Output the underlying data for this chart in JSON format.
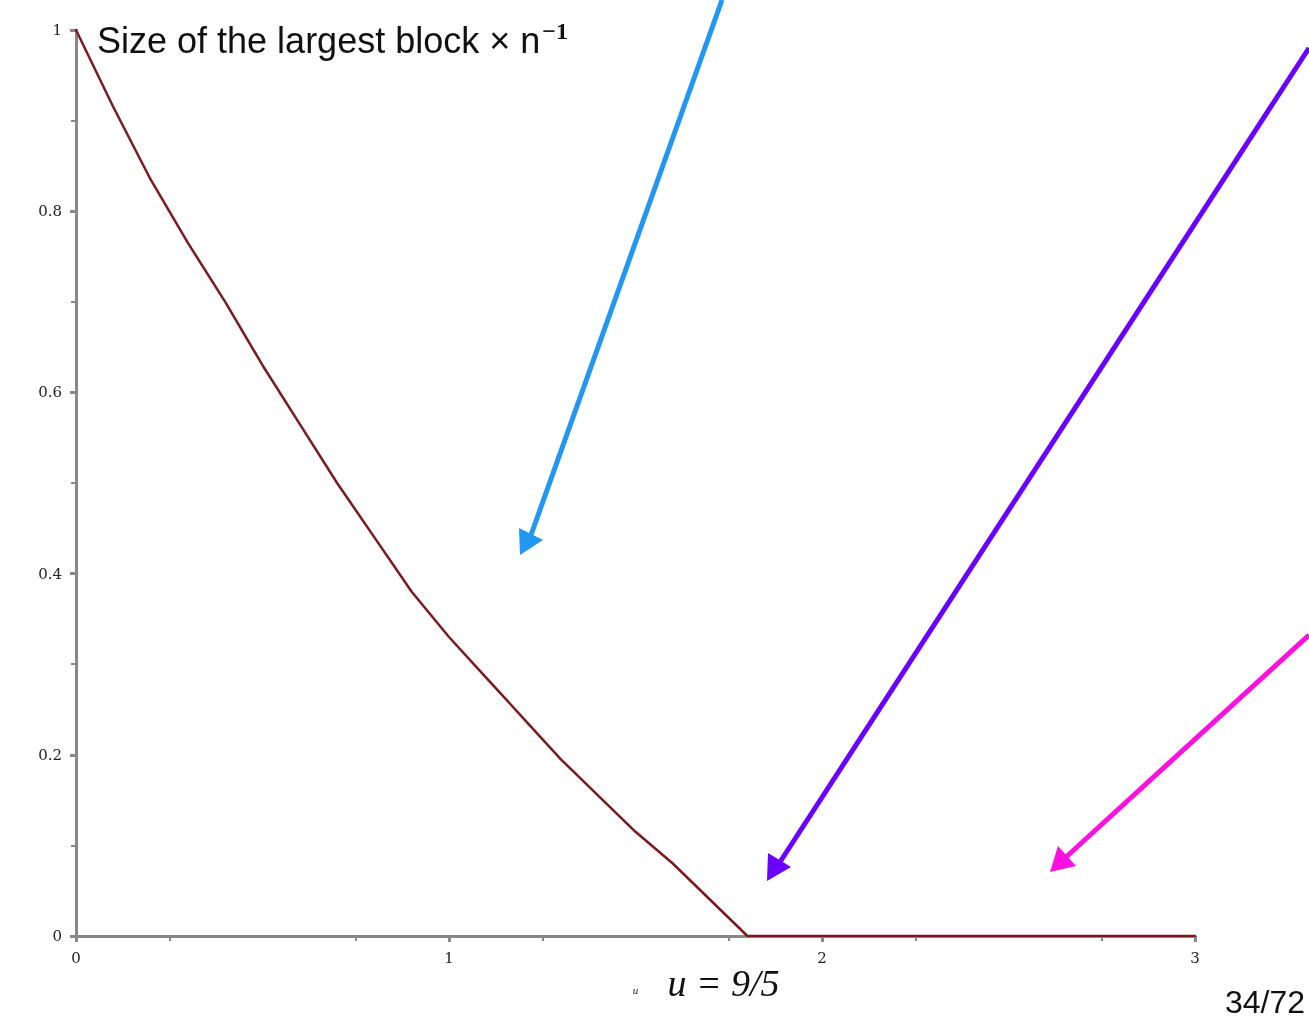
{
  "chart_data": {
    "type": "line",
    "title": "Size of the largest block × n$^{−1}$",
    "xlabel": "u",
    "x": [
      0,
      0.1,
      0.2,
      0.3,
      0.4,
      0.5,
      0.6,
      0.7,
      0.8,
      0.9,
      1.0,
      1.1,
      1.2,
      1.3,
      1.4,
      1.5,
      1.6,
      1.7,
      1.8,
      3
    ],
    "series": [
      {
        "color": "#7b1a1f",
        "values": [
          1,
          0.915,
          0.835,
          0.765,
          0.7,
          0.63,
          0.565,
          0.5,
          0.44,
          0.38,
          0.33,
          0.285,
          0.24,
          0.195,
          0.155,
          0.115,
          0.08,
          0.04,
          0,
          0
        ]
      }
    ],
    "xlim": [
      0,
      3
    ],
    "xticks": [
      0,
      1,
      2,
      3
    ],
    "ylim": [
      0,
      1
    ],
    "yticks": [
      0,
      0.2,
      0.4,
      0.6,
      0.8,
      1
    ],
    "grid": false,
    "marker": "none",
    "line_style": "solid",
    "annotations": [
      {
        "text": "u = 9/5",
        "x": 1.8,
        "y": 0
      },
      "34/72"
    ]
  }
}
